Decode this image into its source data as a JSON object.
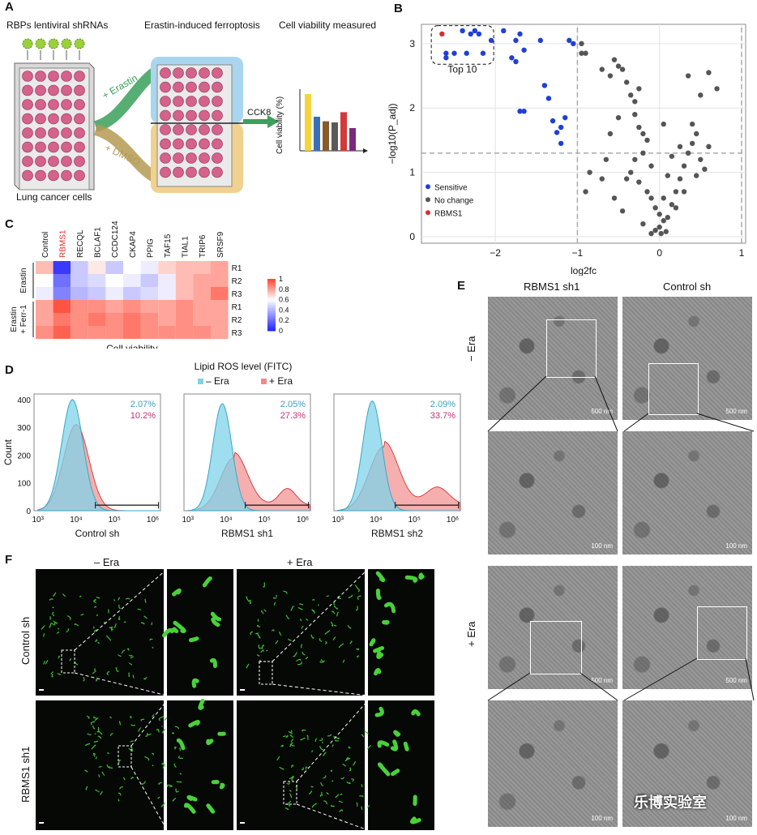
{
  "panels": {
    "A": "A",
    "B": "B",
    "C": "C",
    "D": "D",
    "E": "E",
    "F": "F"
  },
  "panelA": {
    "shrna_label": "RBPs lentiviral shRNAs",
    "erastin_step": "Erastin-induced ferroptosis",
    "viability_step": "Cell viability measured",
    "plus_erastin": "+ Erastin",
    "plus_dmso": "+ DMSO",
    "cck8": "CCK8",
    "cells_label": "Lung cancer cells",
    "bar_ylabel": "Cell viability (%)",
    "bar_colors": [
      "#f5d33b",
      "#3a6fb7",
      "#8b5a2b",
      "#5a5a5a",
      "#d23a3a",
      "#7a2a7a"
    ],
    "bar_values": [
      100,
      60,
      52,
      50,
      68,
      40
    ]
  },
  "chart_data": [
    {
      "type": "scatter",
      "title": "",
      "xlabel": "log2fc",
      "ylabel": "−log10(P_adj)",
      "xlim": [
        -2.9,
        1.05
      ],
      "ylim": [
        -0.1,
        3.3
      ],
      "xticks": [
        -2,
        -1,
        0,
        1
      ],
      "yticks": [
        0,
        1,
        2,
        3
      ],
      "xtick_labels": [
        "−2",
        "−1",
        "0",
        "1"
      ],
      "ytick_labels": [
        "0",
        "1",
        "2",
        "3"
      ],
      "thresholds": {
        "x": [
          -1,
          1
        ],
        "y": 1.3
      },
      "annotation": "Top 10",
      "legend": {
        "placement": "bottom-left",
        "entries": [
          {
            "name": "Sensitive",
            "color": "#1f3fd6"
          },
          {
            "name": "No change",
            "color": "#555555"
          },
          {
            "name": "RBMS1",
            "color": "#d62f2f"
          }
        ]
      },
      "series": [
        {
          "name": "RBMS1",
          "color": "#d62f2f",
          "points": [
            [
              -2.65,
              3.15
            ]
          ]
        },
        {
          "name": "Sensitive",
          "color": "#1f3fd6",
          "points": [
            [
              -2.6,
              2.78
            ],
            [
              -2.5,
              2.85
            ],
            [
              -2.35,
              2.85
            ],
            [
              -2.3,
              3.15
            ],
            [
              -2.25,
              3.2
            ],
            [
              -2.2,
              3.15
            ],
            [
              -2.15,
              2.85
            ],
            [
              -2.05,
              3.05
            ],
            [
              -1.9,
              3.2
            ],
            [
              -1.75,
              3.05
            ],
            [
              -1.7,
              3.15
            ],
            [
              -1.8,
              2.78
            ],
            [
              -1.75,
              2.72
            ],
            [
              -1.65,
              2.9
            ],
            [
              -1.45,
              3.05
            ],
            [
              -1.4,
              2.35
            ],
            [
              -1.35,
              2.15
            ],
            [
              -1.3,
              1.8
            ],
            [
              -1.25,
              1.62
            ],
            [
              -1.2,
              1.45
            ],
            [
              -1.2,
              1.7
            ],
            [
              -1.15,
              1.85
            ],
            [
              -1.1,
              3.05
            ],
            [
              -1.05,
              3.0
            ],
            [
              -1.7,
              1.95
            ],
            [
              -1.65,
              1.95
            ],
            [
              -2.4,
              3.2
            ],
            [
              -2.6,
              2.85
            ]
          ]
        },
        {
          "name": "No change",
          "color": "#555555",
          "points": [
            [
              -0.95,
              3.0
            ],
            [
              -0.9,
              2.85
            ],
            [
              -0.95,
              2.85
            ],
            [
              -0.7,
              2.6
            ],
            [
              -0.6,
              2.5
            ],
            [
              -0.55,
              2.75
            ],
            [
              -0.5,
              2.65
            ],
            [
              -0.45,
              2.6
            ],
            [
              -0.4,
              2.4
            ],
            [
              -0.35,
              2.2
            ],
            [
              -0.3,
              2.1
            ],
            [
              -0.25,
              2.3
            ],
            [
              -0.3,
              1.9
            ],
            [
              -0.25,
              1.7
            ],
            [
              -0.2,
              1.6
            ],
            [
              -0.15,
              1.5
            ],
            [
              -0.2,
              1.3
            ],
            [
              -0.3,
              1.2
            ],
            [
              -0.35,
              1.0
            ],
            [
              -0.4,
              0.9
            ],
            [
              -0.25,
              0.85
            ],
            [
              -0.15,
              0.7
            ],
            [
              -0.1,
              0.6
            ],
            [
              -0.05,
              0.45
            ],
            [
              0.0,
              0.35
            ],
            [
              0.05,
              0.25
            ],
            [
              0.0,
              0.15
            ],
            [
              -0.05,
              0.1
            ],
            [
              0.02,
              0.05
            ],
            [
              0.08,
              0.08
            ],
            [
              -0.1,
              0.05
            ],
            [
              0.1,
              0.3
            ],
            [
              0.15,
              0.5
            ],
            [
              0.2,
              0.7
            ],
            [
              0.25,
              0.9
            ],
            [
              0.3,
              1.1
            ],
            [
              0.35,
              1.3
            ],
            [
              0.4,
              1.45
            ],
            [
              0.45,
              1.6
            ],
            [
              0.5,
              1.2
            ],
            [
              0.6,
              1.4
            ],
            [
              0.55,
              1.05
            ],
            [
              0.45,
              0.95
            ],
            [
              0.3,
              0.7
            ],
            [
              0.2,
              0.45
            ],
            [
              0.35,
              2.5
            ],
            [
              0.5,
              2.2
            ],
            [
              0.6,
              2.55
            ],
            [
              0.7,
              2.3
            ],
            [
              0.4,
              1.75
            ],
            [
              0.25,
              1.4
            ],
            [
              0.15,
              1.25
            ],
            [
              0.1,
              0.95
            ],
            [
              -0.5,
              1.85
            ],
            [
              -0.6,
              1.6
            ],
            [
              -0.65,
              1.2
            ],
            [
              -0.7,
              0.9
            ],
            [
              -0.85,
              1.0
            ],
            [
              -0.9,
              0.7
            ],
            [
              -0.55,
              0.6
            ],
            [
              -0.45,
              0.4
            ],
            [
              -0.2,
              0.2
            ],
            [
              0.05,
              0.6
            ],
            [
              -0.1,
              1.1
            ],
            [
              0.05,
              1.75
            ]
          ]
        }
      ]
    },
    {
      "type": "heatmap",
      "title": "",
      "xlabel": "Cell viability",
      "columns": [
        "Control",
        "RBMS1",
        "RECQL",
        "BCLAF1",
        "CCDC124",
        "CKAP4",
        "PPIG",
        "TAF15",
        "TIAL1",
        "TRIP6",
        "SRSF9"
      ],
      "highlight_column": "RBMS1",
      "rows": [
        "R1",
        "R2",
        "R3",
        "R1",
        "R2",
        "R3"
      ],
      "row_groups": [
        {
          "name": "Erastin",
          "rows": [
            0,
            1,
            2
          ]
        },
        {
          "name": "Erastin + Ferr-1",
          "rows": [
            3,
            4,
            5
          ]
        }
      ],
      "colorbar_ticks": [
        0,
        0.2,
        0.4,
        0.6,
        0.8,
        1
      ],
      "colorbar_labels": [
        "0",
        "0.2",
        "0.4",
        "0.6",
        "0.8",
        "1"
      ],
      "values": [
        [
          0.75,
          0.05,
          0.45,
          0.65,
          0.45,
          0.6,
          0.55,
          0.7,
          0.75,
          0.75,
          0.8
        ],
        [
          0.6,
          0.2,
          0.45,
          0.5,
          0.6,
          0.55,
          0.45,
          0.55,
          0.75,
          0.8,
          0.8
        ],
        [
          0.55,
          0.25,
          0.4,
          0.45,
          0.55,
          0.45,
          0.5,
          0.55,
          0.75,
          0.8,
          0.9
        ],
        [
          0.8,
          0.98,
          0.85,
          0.85,
          0.8,
          0.85,
          0.8,
          0.8,
          0.85,
          0.8,
          0.8
        ],
        [
          0.8,
          0.9,
          0.85,
          0.9,
          0.85,
          0.9,
          0.85,
          0.8,
          0.85,
          0.8,
          0.8
        ],
        [
          0.85,
          0.95,
          0.85,
          0.85,
          0.85,
          0.9,
          0.85,
          0.85,
          0.85,
          0.85,
          0.8
        ]
      ]
    },
    {
      "type": "area",
      "title": "Lipid ROS level (FITC)",
      "ylabel": "Count",
      "ylim": [
        0,
        420
      ],
      "yticks": [
        0,
        100,
        200,
        300,
        400
      ],
      "ytick_labels": [
        "0",
        "100",
        "200",
        "300",
        "400"
      ],
      "xticks": [
        "10³",
        "10⁴",
        "10⁵",
        "10⁶"
      ],
      "legend": {
        "placement": "top",
        "entries": [
          {
            "name": "– Era",
            "color": "#7fd3e8"
          },
          {
            "name": "+ Era",
            "color": "#f08a8a"
          }
        ]
      },
      "subplots": [
        {
          "xlabel": "Control sh",
          "pct_minus": "2.07%",
          "pct_plus": "10.2%",
          "minus_peak": {
            "logx": 3.9,
            "height": 400,
            "width": 0.28
          },
          "plus_peak": {
            "logx": 4.0,
            "height": 310,
            "width": 0.33
          },
          "plus_tail": []
        },
        {
          "xlabel": "RBMS1 sh1",
          "pct_minus": "2.05%",
          "pct_plus": "27.3%",
          "minus_peak": {
            "logx": 3.9,
            "height": 385,
            "width": 0.25
          },
          "plus_peak": {
            "logx": 4.2,
            "height": 190,
            "width": 0.35
          },
          "plus_tail": [
            [
              5.6,
              60,
              0.22
            ]
          ]
        },
        {
          "xlabel": "RBMS1 sh2",
          "pct_minus": "2.09%",
          "pct_plus": "33.7%",
          "minus_peak": {
            "logx": 3.9,
            "height": 395,
            "width": 0.25
          },
          "plus_peak": {
            "logx": 4.2,
            "height": 230,
            "width": 0.38
          },
          "plus_tail": [
            [
              5.6,
              65,
              0.3
            ]
          ]
        }
      ]
    }
  ],
  "panelE": {
    "col1": "RBMS1 sh1",
    "col2": "Control sh",
    "row_minus": "− Era",
    "row_plus": "+ Era",
    "scale_500": "500 nm",
    "scale_100": "100 nm"
  },
  "panelF": {
    "col_minus": "– Era",
    "col_plus": "+ Era",
    "row1": "Control sh",
    "row2": "RBMS1 sh1"
  },
  "watermark": "乐博实验室"
}
